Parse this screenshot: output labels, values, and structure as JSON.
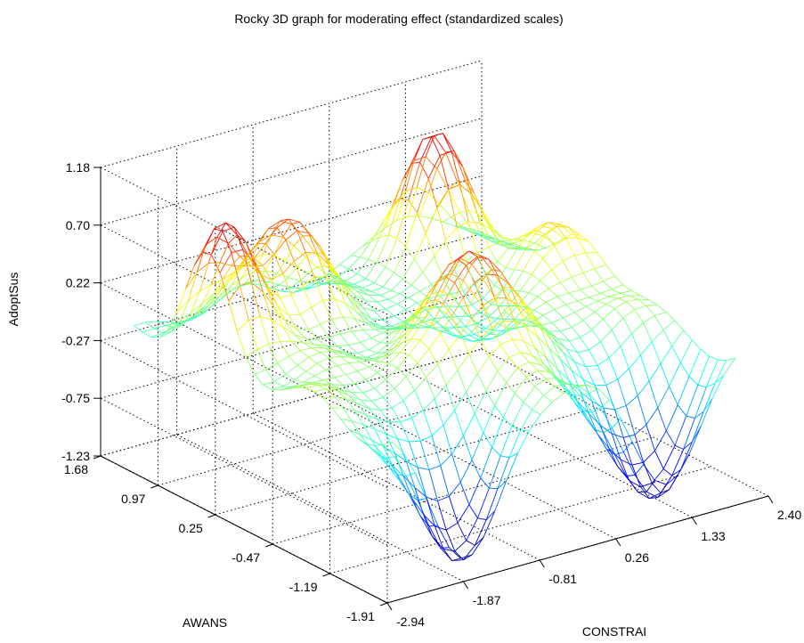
{
  "chart_data": {
    "type": "surface3d",
    "title": "Rocky 3D graph for moderating effect (standardized scales)",
    "xlabel": "CONSTRAI",
    "ylabel": "AWANS",
    "zlabel": "AdoptSus",
    "x_ticks": [
      "-2.94",
      "-1.87",
      "-0.81",
      "0.26",
      "1.33",
      "2.40"
    ],
    "y_ticks": [
      "-1.91",
      "-1.19",
      "-0.47",
      "0.25",
      "0.97",
      "1.68"
    ],
    "z_ticks": [
      "-1.23",
      "-0.75",
      "-0.27",
      "0.22",
      "0.70",
      "1.18"
    ],
    "xlim": [
      -2.94,
      2.4
    ],
    "ylim": [
      -1.91,
      1.68
    ],
    "zlim": [
      -1.23,
      1.18
    ],
    "grid": true,
    "box": true,
    "colormap": "jet",
    "mesh_size": [
      30,
      30
    ],
    "surface_peaks": [
      {
        "x": -2.4,
        "y": 0.6,
        "z": 1.15
      },
      {
        "x": -1.2,
        "y": 0.9,
        "z": 1.0
      },
      {
        "x": 1.1,
        "y": 1.1,
        "z": 1.18
      },
      {
        "x": -0.3,
        "y": -0.6,
        "z": 0.95
      },
      {
        "x": 1.8,
        "y": 0.2,
        "z": 0.55
      }
    ],
    "surface_troughs": [
      {
        "x": -1.6,
        "y": -1.6,
        "z": -1.23
      },
      {
        "x": 1.2,
        "y": -1.5,
        "z": -1.23
      },
      {
        "x": 0.6,
        "y": 0.1,
        "z": -0.1
      }
    ]
  }
}
